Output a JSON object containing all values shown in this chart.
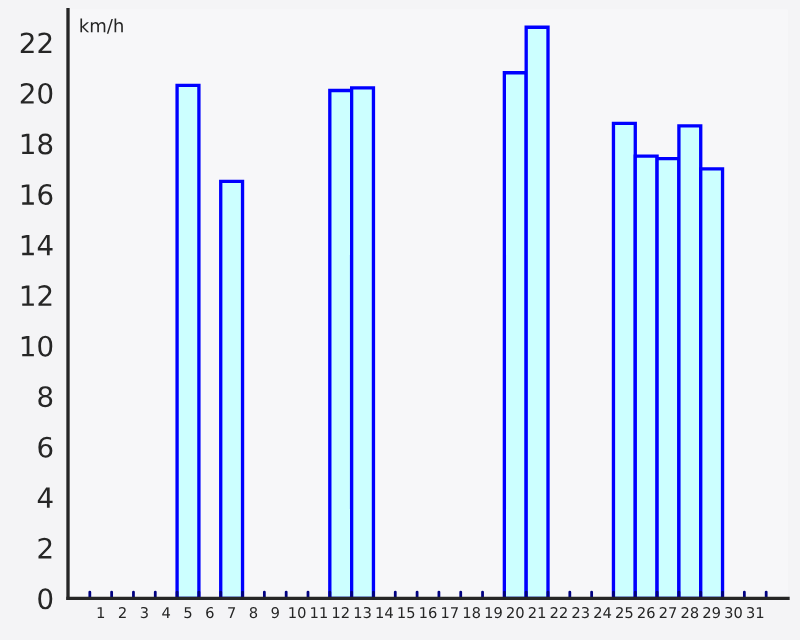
{
  "chart_data": {
    "type": "bar",
    "ylabel": "km/h",
    "categories": [
      "1",
      "2",
      "3",
      "4",
      "5",
      "6",
      "7",
      "8",
      "9",
      "10",
      "11",
      "12",
      "13",
      "14",
      "15",
      "16",
      "17",
      "18",
      "19",
      "20",
      "21",
      "22",
      "23",
      "24",
      "25",
      "26",
      "27",
      "28",
      "29",
      "30",
      "31"
    ],
    "series": [
      {
        "color": "#ccffff",
        "values": [
          null,
          null,
          null,
          null,
          20.3,
          null,
          16.5,
          null,
          null,
          null,
          null,
          20.1,
          20.2,
          null,
          null,
          null,
          null,
          null,
          null,
          20.8,
          22.6,
          null,
          null,
          null,
          18.8,
          17.5,
          17.4,
          18.7,
          17.0,
          null,
          null
        ]
      }
    ],
    "ylim": [
      0,
      23.3
    ],
    "yticks": [
      0,
      2,
      4,
      6,
      8,
      10,
      12,
      14,
      16,
      18,
      20,
      22
    ],
    "grid": false,
    "legend": false
  }
}
